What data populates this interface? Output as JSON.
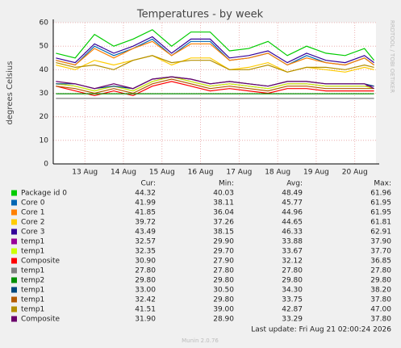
{
  "chart_data": {
    "type": "line",
    "title": "Temperatures - by week",
    "y_label": "degrees Celsius",
    "side_label": "RRDTOOL / TOBI OETIKER",
    "x": [
      12.25,
      12.75,
      13.25,
      13.75,
      14.25,
      14.75,
      15.25,
      15.75,
      16.25,
      16.75,
      17.25,
      17.75,
      18.25,
      18.75,
      19.25,
      19.75,
      20.25,
      20.5
    ],
    "xlim": [
      12.18,
      20.55
    ],
    "xticks": [
      {
        "value": 13,
        "label": "13 Aug"
      },
      {
        "value": 14,
        "label": "14 Aug"
      },
      {
        "value": 15,
        "label": "15 Aug"
      },
      {
        "value": 16,
        "label": "16 Aug"
      },
      {
        "value": 17,
        "label": "17 Aug"
      },
      {
        "value": 18,
        "label": "18 Aug"
      },
      {
        "value": 19,
        "label": "19 Aug"
      },
      {
        "value": 20,
        "label": "20 Aug"
      }
    ],
    "ylim": [
      0,
      60
    ],
    "yticks": [
      0,
      10,
      20,
      30,
      40,
      50,
      60
    ],
    "grid": true,
    "legend_headers": [
      "Cur:",
      "Min:",
      "Avg:",
      "Max:"
    ],
    "series": [
      {
        "name": "Package id 0",
        "color": "#00cc00",
        "values": [
          47,
          45,
          55,
          50,
          53,
          57,
          50,
          56,
          56,
          48,
          49,
          52,
          46,
          50,
          47,
          46,
          49,
          44
        ],
        "cur": "44.32",
        "min": "40.03",
        "avg": "48.49",
        "max": "61.96"
      },
      {
        "name": "Core 0",
        "color": "#0066b3",
        "values": [
          44,
          42,
          50,
          46,
          49,
          53,
          46,
          52,
          52,
          44,
          45,
          47,
          42,
          46,
          43,
          42,
          45,
          42
        ],
        "cur": "41.99",
        "min": "38.11",
        "avg": "45.77",
        "max": "61.95"
      },
      {
        "name": "Core 1",
        "color": "#ff8000",
        "values": [
          44,
          42,
          49,
          45,
          49,
          52,
          46,
          51,
          51,
          44,
          45,
          47,
          42,
          45,
          43,
          42,
          45,
          42
        ],
        "cur": "41.85",
        "min": "36.04",
        "avg": "44.96",
        "max": "61.95"
      },
      {
        "name": "Core 2",
        "color": "#ffcc00",
        "values": [
          42,
          40,
          44,
          42,
          44,
          46,
          42,
          45,
          45,
          40,
          41,
          43,
          39,
          41,
          40,
          39,
          41,
          40
        ],
        "cur": "39.72",
        "min": "37.26",
        "avg": "44.65",
        "max": "61.81"
      },
      {
        "name": "Core 3",
        "color": "#330099",
        "values": [
          45,
          43,
          51,
          47,
          50,
          54,
          47,
          53,
          53,
          45,
          46,
          48,
          43,
          47,
          44,
          43,
          46,
          43
        ],
        "cur": "43.49",
        "min": "38.15",
        "avg": "46.33",
        "max": "62.91"
      },
      {
        "name": "temp1",
        "color": "#990099",
        "values": [
          34,
          33,
          31,
          33,
          31,
          35,
          37,
          35,
          33,
          34,
          33,
          32,
          34,
          34,
          33,
          33,
          33,
          33
        ],
        "cur": "32.57",
        "min": "29.90",
        "avg": "33.88",
        "max": "37.90"
      },
      {
        "name": "temp1",
        "color": "#ccff00",
        "values": [
          34,
          33,
          31,
          33,
          31,
          35,
          37,
          35,
          33,
          34,
          33,
          32,
          34,
          34,
          33,
          33,
          33,
          32
        ],
        "cur": "32.35",
        "min": "29.70",
        "avg": "33.67",
        "max": "37.70"
      },
      {
        "name": "Composite",
        "color": "#ff0000",
        "values": [
          33,
          31,
          29,
          31,
          29,
          33,
          35,
          33,
          31,
          32,
          31,
          30,
          32,
          32,
          31,
          31,
          31,
          31
        ],
        "cur": "30.90",
        "min": "27.90",
        "avg": "32.12",
        "max": "36.85"
      },
      {
        "name": "temp1",
        "color": "#808080",
        "values": [
          27.8,
          27.8,
          27.8,
          27.8,
          27.8,
          27.8,
          27.8,
          27.8,
          27.8,
          27.8,
          27.8,
          27.8,
          27.8,
          27.8,
          27.8,
          27.8,
          27.8,
          27.8
        ],
        "cur": "27.80",
        "min": "27.80",
        "avg": "27.80",
        "max": "27.80"
      },
      {
        "name": "temp2",
        "color": "#008f00",
        "values": [
          29.8,
          29.8,
          29.8,
          29.8,
          29.8,
          29.8,
          29.8,
          29.8,
          29.8,
          29.8,
          29.8,
          29.8,
          29.8,
          29.8,
          29.8,
          29.8,
          29.8,
          29.8
        ],
        "cur": "29.80",
        "min": "29.80",
        "avg": "29.80",
        "max": "29.80"
      },
      {
        "name": "temp1",
        "color": "#00487d",
        "values": [
          34,
          34,
          32,
          33,
          32,
          36,
          37,
          36,
          34,
          35,
          34,
          33,
          35,
          35,
          34,
          34,
          34,
          33
        ],
        "cur": "33.00",
        "min": "30.50",
        "avg": "34.30",
        "max": "38.20"
      },
      {
        "name": "temp1",
        "color": "#b35a00",
        "values": [
          33,
          32,
          30,
          32,
          30,
          34,
          36,
          34,
          32,
          33,
          32,
          31,
          33,
          33,
          32,
          32,
          32,
          32
        ],
        "cur": "32.42",
        "min": "29.80",
        "avg": "33.75",
        "max": "37.80"
      },
      {
        "name": "temp1",
        "color": "#b38f00",
        "values": [
          43,
          41,
          42,
          40,
          44,
          46,
          43,
          44,
          44,
          40,
          40,
          42,
          39,
          41,
          41,
          40,
          42,
          41
        ],
        "cur": "41.51",
        "min": "39.00",
        "avg": "42.87",
        "max": "47.00"
      },
      {
        "name": "Composite",
        "color": "#6b006b",
        "values": [
          35,
          34,
          32,
          34,
          32,
          36,
          37,
          36,
          34,
          35,
          34,
          33,
          35,
          35,
          34,
          34,
          34,
          32
        ],
        "cur": "31.90",
        "min": "28.90",
        "avg": "33.29",
        "max": "37.80"
      }
    ],
    "last_update": "Last update: Fri Aug 21 02:00:24 2026",
    "footer": "Munin 2.0.76"
  }
}
